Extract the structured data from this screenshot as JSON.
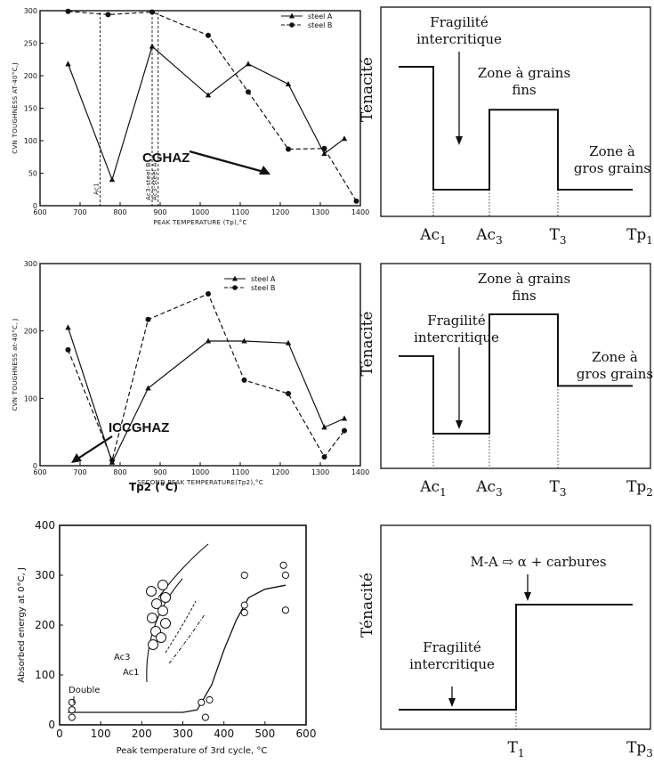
{
  "chart_data": [
    {
      "id": "c1",
      "type": "line",
      "xlabel": "PEAK TEMPERATURE (Tp),°C",
      "ylabel": "CVN TOUGHNESS AT-40°C,J",
      "xlim": [
        600,
        1400
      ],
      "ylim": [
        0,
        300
      ],
      "xticks": [
        "600",
        "700",
        "800",
        "900",
        "1000",
        "1100",
        "1200",
        "1300",
        "1400"
      ],
      "yticks": [
        "0",
        "50",
        "100",
        "150",
        "200",
        "250",
        "300"
      ],
      "series": [
        {
          "name": "steel A",
          "marker": "triangle",
          "line": "solid",
          "x": [
            670,
            780,
            880,
            1020,
            1120,
            1220,
            1310,
            1360
          ],
          "y": [
            218,
            40,
            245,
            170,
            218,
            187,
            80,
            103
          ]
        },
        {
          "name": "steel B",
          "marker": "circle",
          "line": "dashed",
          "x": [
            670,
            770,
            880,
            1020,
            1120,
            1220,
            1310,
            1390
          ],
          "y": [
            299,
            294,
            298,
            262,
            175,
            87,
            88,
            7
          ]
        }
      ],
      "vlines": [
        {
          "x": 750,
          "label": "Ac1"
        },
        {
          "x": 880,
          "label": "Ac3-steel B"
        },
        {
          "x": 895,
          "label": "Ac3-steel A"
        }
      ],
      "annotation": "CGHAZ"
    },
    {
      "id": "c2",
      "type": "line",
      "xlabel": "SECOND PEAK TEMPERATURE(Tp2),°C",
      "ylabel": "CVN TOUGHNESS at-40°C, J",
      "extra_label": "Tp2 (°C)",
      "xlim": [
        600,
        1400
      ],
      "ylim": [
        0,
        300
      ],
      "xticks": [
        "600",
        "700",
        "800",
        "900",
        "1000",
        "1100",
        "1200",
        "1300",
        "1400"
      ],
      "yticks": [
        "0",
        "100",
        "200",
        "300"
      ],
      "series": [
        {
          "name": "steel A",
          "marker": "triangle",
          "line": "solid",
          "x": [
            670,
            780,
            870,
            1020,
            1110,
            1220,
            1310,
            1360
          ],
          "y": [
            205,
            5,
            115,
            185,
            185,
            182,
            57,
            70
          ]
        },
        {
          "name": "steel B",
          "marker": "circle",
          "line": "dashed",
          "x": [
            670,
            780,
            870,
            1020,
            1110,
            1220,
            1310,
            1360
          ],
          "y": [
            172,
            8,
            217,
            255,
            127,
            107,
            13,
            52
          ]
        }
      ],
      "annotation": "ICCGHAZ"
    },
    {
      "id": "c3",
      "type": "scatter",
      "xlabel": "Peak temperature of 3rd cycle, °C",
      "ylabel": "Absorbed energy at 0°C, J",
      "xlim": [
        0,
        600
      ],
      "ylim": [
        0,
        400
      ],
      "xticks": [
        "0",
        "100",
        "200",
        "300",
        "400",
        "500",
        "600"
      ],
      "yticks": [
        "0",
        "100",
        "200",
        "300",
        "400"
      ],
      "points_x": [
        30,
        30,
        30,
        345,
        355,
        365,
        450,
        450,
        450,
        545,
        550,
        550
      ],
      "points_y": [
        30,
        15,
        45,
        45,
        15,
        50,
        300,
        240,
        225,
        320,
        300,
        230
      ],
      "curve_x": [
        20,
        300,
        335,
        370,
        400,
        430,
        460,
        500,
        550
      ],
      "curve_y": [
        25,
        25,
        30,
        80,
        150,
        210,
        255,
        272,
        280
      ],
      "annotations": [
        "Double cycle",
        "Ac3",
        "Ac1"
      ]
    },
    {
      "id": "d1",
      "type": "line",
      "ylabel": "Ténacité",
      "x_labels": [
        "Ac1",
        "Ac3",
        "T3",
        "Tp1"
      ],
      "levels": [
        {
          "from": "start",
          "to": "Ac1",
          "value": 3.0
        },
        {
          "from": "Ac1",
          "to": "Ac3",
          "value": 1.0
        },
        {
          "from": "Ac3",
          "to": "T3",
          "value": 2.3
        },
        {
          "from": "T3",
          "to": "end",
          "value": 1.0
        }
      ],
      "annotations": [
        "Fragilité intercritique",
        "Zone à grains fins",
        "Zone à gros grains"
      ]
    },
    {
      "id": "d2",
      "type": "line",
      "ylabel": "Ténacité",
      "x_labels": [
        "Ac1",
        "Ac3",
        "T3",
        "Tp2"
      ],
      "levels": [
        {
          "from": "start",
          "to": "Ac1",
          "value": 2.3
        },
        {
          "from": "Ac1",
          "to": "Ac3",
          "value": 1.0
        },
        {
          "from": "Ac3",
          "to": "T3",
          "value": 3.0
        },
        {
          "from": "T3",
          "to": "end",
          "value": 1.8
        }
      ],
      "annotations": [
        "Fragilité intercritique",
        "Zone à grains fins",
        "Zone à gros grains"
      ]
    },
    {
      "id": "d3",
      "type": "line",
      "ylabel": "Ténacité",
      "x_labels": [
        "T1",
        "Tp3"
      ],
      "levels": [
        {
          "from": "start",
          "to": "T1",
          "value": 1.0
        },
        {
          "from": "T1",
          "to": "end",
          "value": 3.0
        }
      ],
      "annotations": [
        "Fragilité intercritique",
        "M-A ⇨ α + carbures"
      ]
    }
  ]
}
